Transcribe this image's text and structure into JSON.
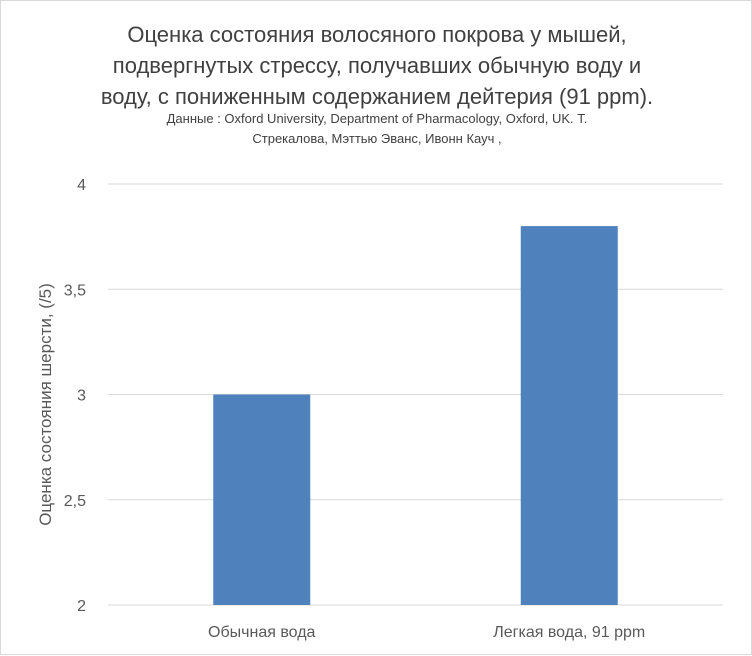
{
  "chart_data": {
    "type": "bar",
    "title": [
      "Оценка состояния волосяного покрова у мышей,",
      "подвергнутых стрессу, получавших обычную воду и",
      "воду, с пониженным содержанием дейтерия (91 ppm)."
    ],
    "subtitle": [
      "Данные : Oxford University, Department of Pharmacology, Oxford, UK.  Т.",
      "Стрекалова, Мэттью Эванс, Ивонн Кауч ,"
    ],
    "categories": [
      "Обычная вода",
      "Легкая вода, 91 ppm"
    ],
    "values": [
      3.0,
      3.8
    ],
    "xlabel": "",
    "ylabel": "Оценка состояния шерсти, (/5)",
    "ylim": [
      2,
      4
    ],
    "yticks": [
      "2",
      "2,5",
      "3",
      "3,5",
      "4"
    ],
    "ytick_values": [
      2,
      2.5,
      3,
      3.5,
      4
    ],
    "grid": true,
    "legend": "none",
    "colors": {
      "bar": "#4f81bd",
      "grid": "#d9d9d9",
      "text": "#595959",
      "title": "#404040"
    }
  }
}
